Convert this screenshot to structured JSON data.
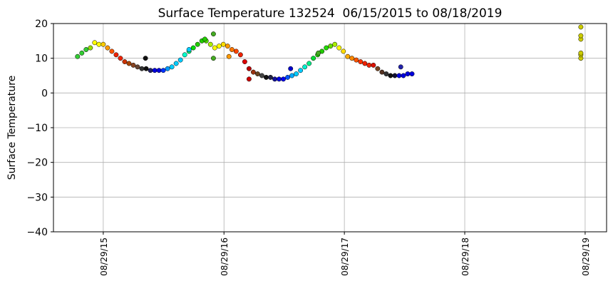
{
  "chart_data": {
    "type": "scatter",
    "title": "Surface Temperature 132524  06/15/2015 to 08/18/2019",
    "y_label": "Surface Temperature",
    "x": [
      "2015-06-12",
      "2015-06-25",
      "2015-07-08",
      "2015-07-21",
      "2015-08-03",
      "2015-08-16",
      "2015-08-29",
      "2015-09-11",
      "2015-09-24",
      "2015-10-07",
      "2015-10-20",
      "2015-11-02",
      "2015-11-15",
      "2015-11-28",
      "2015-12-11",
      "2015-12-24",
      "2016-01-06",
      "2016-01-19",
      "2016-02-01",
      "2016-02-14",
      "2016-02-27",
      "2016-03-11",
      "2016-03-24",
      "2016-04-06",
      "2016-04-19",
      "2016-05-02",
      "2016-05-15",
      "2016-05-28",
      "2016-06-10",
      "2016-06-23",
      "2016-07-06",
      "2016-07-19",
      "2016-08-01",
      "2016-08-14",
      "2016-08-27",
      "2016-09-09",
      "2016-09-22",
      "2016-10-05",
      "2016-10-18",
      "2016-10-31",
      "2016-11-13",
      "2016-11-26",
      "2016-12-09",
      "2016-12-22",
      "2017-01-04",
      "2017-01-17",
      "2017-01-30",
      "2017-02-12",
      "2017-02-25",
      "2017-03-10",
      "2017-03-23",
      "2017-04-05",
      "2017-04-18",
      "2017-05-01",
      "2017-05-14",
      "2017-05-27",
      "2017-06-09",
      "2017-06-22",
      "2017-07-05",
      "2017-07-18",
      "2017-07-31",
      "2017-08-13",
      "2017-08-26",
      "2017-09-08",
      "2017-09-21",
      "2017-10-04",
      "2017-10-17",
      "2017-10-30",
      "2017-11-12",
      "2017-11-25",
      "2017-12-08",
      "2017-12-21",
      "2018-01-03",
      "2018-01-16",
      "2018-01-29",
      "2018-02-11",
      "2018-02-24",
      "2018-03-09",
      "2018-03-22",
      "2016-01-04",
      "2016-05-15",
      "2016-07-02",
      "2016-07-28",
      "2016-07-28",
      "2016-09-13",
      "2016-11-13",
      "2017-03-19",
      "2017-06-11",
      "2018-02-16",
      "2019-08-16",
      "2019-08-16",
      "2019-08-16",
      "2019-08-16",
      "2019-08-16",
      "2019-08-16"
    ],
    "values": [
      10.5,
      11.5,
      12.5,
      13,
      14.5,
      14,
      14,
      13,
      12,
      11,
      10,
      9,
      8.5,
      8,
      7.5,
      7,
      7,
      6.5,
      6.5,
      6.5,
      6.5,
      7,
      7.5,
      8.5,
      9.5,
      11,
      12,
      13,
      14,
      15,
      15,
      14,
      13,
      13.5,
      14,
      13.5,
      12.5,
      12,
      11,
      9,
      7,
      6,
      5.5,
      5,
      4.5,
      4.5,
      4,
      4,
      4,
      4.5,
      5,
      5.5,
      6.5,
      7.5,
      8.5,
      10,
      11,
      12,
      13,
      13.5,
      14,
      13,
      12,
      10.5,
      10,
      9.5,
      9,
      8.5,
      8,
      8,
      7,
      6,
      5.5,
      5,
      5,
      5,
      5,
      5.5,
      5.5,
      10,
      12.5,
      15.5,
      17,
      10,
      10.5,
      4,
      7,
      11.5,
      7.5,
      10,
      11,
      11.5,
      15.5,
      16.5,
      19
    ],
    "colors": [
      "#33cc33",
      "#33cc33",
      "#33cc33",
      "#99dd00",
      "#ffff00",
      "#ffff00",
      "#ffcc00",
      "#ff9900",
      "#ff5500",
      "#ee2200",
      "#ee2200",
      "#cc3300",
      "#aa4400",
      "#884422",
      "#664433",
      "#333333",
      "#111111",
      "#222266",
      "#0000dd",
      "#0000dd",
      "#0033ff",
      "#0099ff",
      "#00ccff",
      "#00ccff",
      "#00ccff",
      "#00ffcc",
      "#00ee66",
      "#00dd00",
      "#22cc00",
      "#22cc00",
      "#55dd00",
      "#aaee00",
      "#ffff00",
      "#ffff00",
      "#ffdd00",
      "#ff9900",
      "#ff7700",
      "#ff4400",
      "#ee2200",
      "#dd0000",
      "#bb0000",
      "#993311",
      "#664422",
      "#444444",
      "#111111",
      "#222244",
      "#111199",
      "#0000dd",
      "#0000ee",
      "#0055ff",
      "#00aaff",
      "#00ccff",
      "#00ccff",
      "#00eecc",
      "#00ee88",
      "#00dd33",
      "#22cc00",
      "#22cc00",
      "#22dd00",
      "#66dd00",
      "#aaee00",
      "#ffff00",
      "#ffdd00",
      "#ffaa00",
      "#ff8800",
      "#ff5500",
      "#ff3300",
      "#ee2200",
      "#ee2200",
      "#dd1100",
      "#774422",
      "#553322",
      "#333333",
      "#111111",
      "#111133",
      "#0000dd",
      "#0000dd",
      "#0000dd",
      "#0000dd",
      "#111111",
      "#00ccff",
      "#22cc00",
      "#44aa22",
      "#44aa22",
      "#ff9900",
      "#cc0000",
      "#0000cc",
      "#44aa22",
      "#2222aa",
      "#cccc00",
      "#cccc00",
      "#cccc00",
      "#cccc00",
      "#cccc00",
      "#cccc00"
    ],
    "xlim": [
      "2015-03-31",
      "2019-11-02"
    ],
    "xticks": [
      {
        "value": "2015-08-29",
        "label": "08/29/15"
      },
      {
        "value": "2016-08-29",
        "label": "08/29/16"
      },
      {
        "value": "2017-08-29",
        "label": "08/29/17"
      },
      {
        "value": "2018-08-29",
        "label": "08/29/18"
      },
      {
        "value": "2019-08-29",
        "label": "08/29/19"
      }
    ],
    "ylim": [
      -40,
      20
    ],
    "yticks": [
      {
        "value": -40,
        "label": "−40"
      },
      {
        "value": -30,
        "label": "−30"
      },
      {
        "value": -20,
        "label": "−20"
      },
      {
        "value": -10,
        "label": "−10"
      },
      0,
      10,
      20
    ],
    "grid": true
  }
}
